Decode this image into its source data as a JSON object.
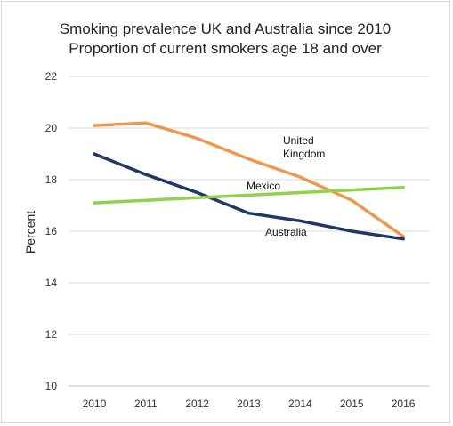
{
  "chart_data": {
    "type": "line",
    "title_lines": [
      "Smoking prevalence UK and Australia since 2010",
      "Proportion of current smokers age 18 and over"
    ],
    "xlabel": "",
    "ylabel": "Percent",
    "categories": [
      "2010",
      "2011",
      "2012",
      "2013",
      "2014",
      "2015",
      "2016"
    ],
    "ylim": [
      10,
      22
    ],
    "yticks": [
      10,
      12,
      14,
      16,
      18,
      20,
      22
    ],
    "grid": "horizontal",
    "legend": "none",
    "series": [
      {
        "name": "United Kingdom",
        "label_lines": [
          "United",
          "Kingdom"
        ],
        "color": "#F0974F",
        "values": [
          20.1,
          20.2,
          19.6,
          18.8,
          18.1,
          17.2,
          15.8
        ]
      },
      {
        "name": "Australia",
        "label_lines": [
          "Australia"
        ],
        "color": "#1F3864",
        "values": [
          19.0,
          18.2,
          17.5,
          16.7,
          16.4,
          16.0,
          15.7
        ]
      },
      {
        "name": "Mexico",
        "label_lines": [
          "Mexico"
        ],
        "color": "#92D050",
        "values": [
          17.1,
          17.2,
          17.3,
          17.4,
          17.5,
          17.6,
          17.7
        ]
      }
    ]
  }
}
